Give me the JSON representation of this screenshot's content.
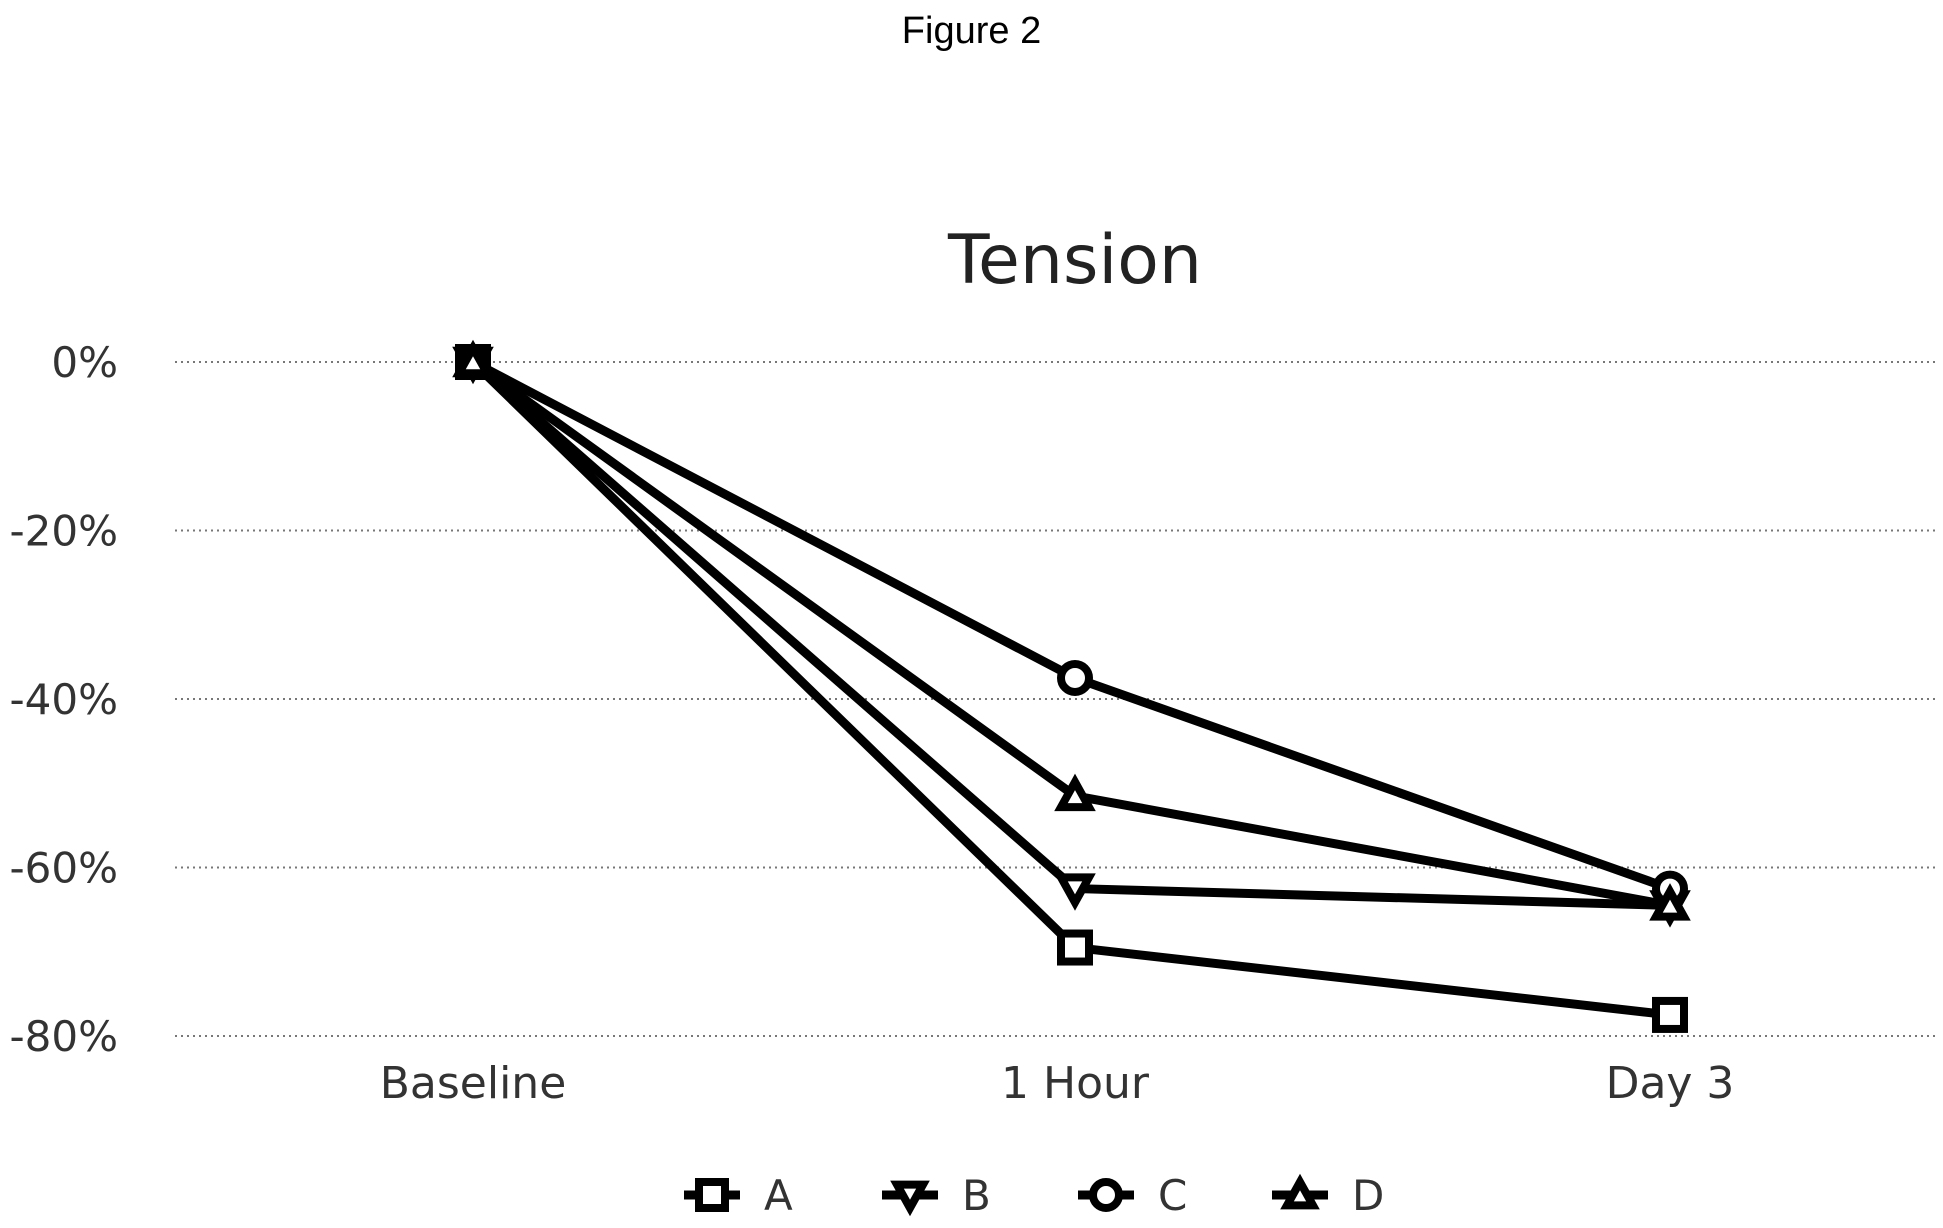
{
  "figure_label": "Figure 2",
  "chart_data": {
    "type": "line",
    "title": "Tension",
    "xlabel": "",
    "ylabel": "",
    "categories": [
      "Baseline",
      "1 Hour",
      "Day 3"
    ],
    "ylim": [
      -80,
      0
    ],
    "yticks": [
      0,
      -20,
      -40,
      -60,
      -80
    ],
    "ytick_labels": [
      "0%",
      "-20%",
      "-40%",
      "-60%",
      "-80%"
    ],
    "grid": true,
    "legend_position": "bottom",
    "series": [
      {
        "name": "A",
        "marker": "square",
        "values": [
          0,
          -69.5,
          -77.5
        ]
      },
      {
        "name": "B",
        "marker": "triangle-down",
        "values": [
          0,
          -62.5,
          -64.5
        ]
      },
      {
        "name": "C",
        "marker": "circle",
        "values": [
          0,
          -37.5,
          -62.5
        ]
      },
      {
        "name": "D",
        "marker": "triangle-up",
        "values": [
          0,
          -51.5,
          -64.5
        ]
      }
    ],
    "line_color": "#000000"
  }
}
